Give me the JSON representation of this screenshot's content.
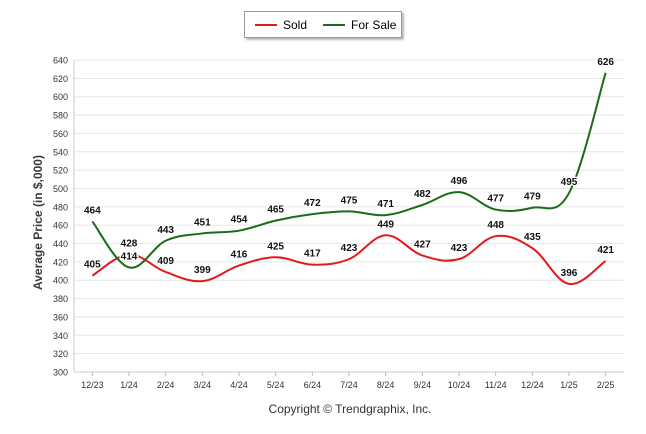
{
  "chart_data": {
    "type": "line",
    "ylabel": "Average Price (in $,000)",
    "xlabel": "",
    "categories": [
      "12/23",
      "1/24",
      "2/24",
      "3/24",
      "4/24",
      "5/24",
      "6/24",
      "7/24",
      "8/24",
      "9/24",
      "10/24",
      "11/24",
      "12/24",
      "1/25",
      "2/25"
    ],
    "ylim": [
      300,
      640
    ],
    "ytick_step": 20,
    "grid": true,
    "legend_position": "top-center",
    "series": [
      {
        "name": "Sold",
        "color": "#e31a1c",
        "values": [
          405,
          428,
          409,
          399,
          416,
          425,
          417,
          423,
          449,
          427,
          423,
          448,
          435,
          396,
          421
        ]
      },
      {
        "name": "For Sale",
        "color": "#1a6b1a",
        "values": [
          464,
          414,
          443,
          451,
          454,
          465,
          472,
          475,
          471,
          482,
          496,
          477,
          479,
          495,
          626
        ]
      }
    ]
  },
  "legend": {
    "sold_label": "Sold",
    "forsale_label": "For Sale"
  },
  "copyright": "Copyright © Trendgraphix, Inc."
}
